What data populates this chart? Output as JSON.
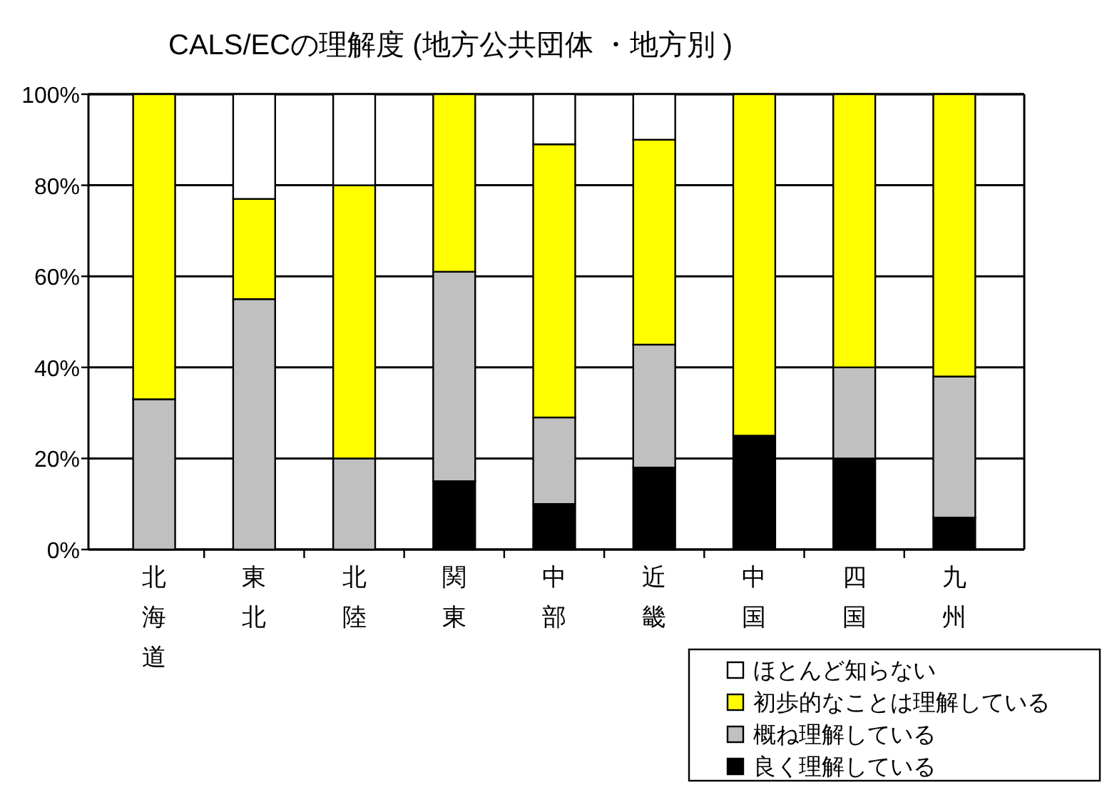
{
  "chart_data": {
    "type": "bar",
    "title": "CALS/ECの理解度 (地方公共団体 ・地方別 )",
    "categories": [
      "北海道",
      "東北",
      "北陸",
      "関東",
      "中部",
      "近畿",
      "中国",
      "四国",
      "九州"
    ],
    "stacked": true,
    "series": [
      {
        "name": "良く理解している",
        "color": "#000000",
        "values": [
          0,
          0,
          0,
          15,
          10,
          18,
          25,
          20,
          7
        ]
      },
      {
        "name": "概ね理解している",
        "color": "#c0c0c0",
        "values": [
          33,
          55,
          20,
          46,
          19,
          27,
          0,
          20,
          31
        ]
      },
      {
        "name": "初歩的なことは理解している",
        "color": "#ffff00",
        "values": [
          67,
          22,
          60,
          39,
          60,
          45,
          75,
          60,
          62
        ]
      },
      {
        "name": "ほとんど知らない",
        "color": "#ffffff",
        "values": [
          0,
          23,
          20,
          0,
          11,
          10,
          0,
          0,
          0
        ]
      }
    ],
    "ylim": [
      0,
      100
    ],
    "yticks": [
      {
        "value": 0,
        "label": "0%"
      },
      {
        "value": 20,
        "label": "20%"
      },
      {
        "value": 40,
        "label": "40%"
      },
      {
        "value": 60,
        "label": "60%"
      },
      {
        "value": 80,
        "label": "80%"
      },
      {
        "value": 100,
        "label": "100%"
      }
    ],
    "grid": "y",
    "legend": "bottom right"
  }
}
